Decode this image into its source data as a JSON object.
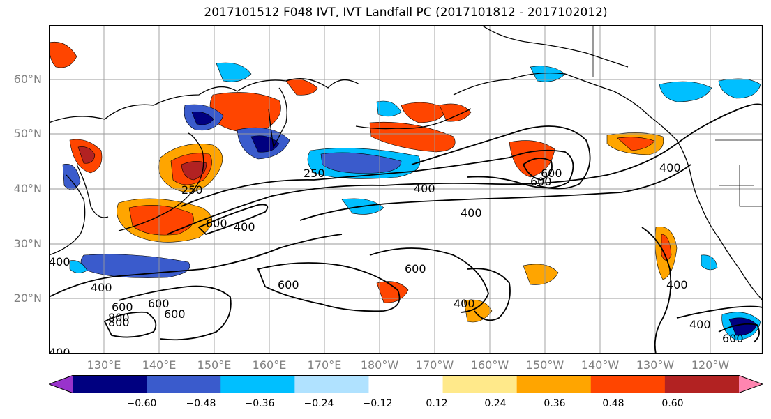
{
  "title": "2017101512 F048 IVT, IVT Landfall PC (2017101812 - 2017102012)",
  "lat_labels": [
    "60°N",
    "50°N",
    "40°N",
    "30°N",
    "20°N"
  ],
  "lon_labels": [
    "130°E",
    "140°E",
    "150°E",
    "160°E",
    "170°E",
    "180°W",
    "170°W",
    "160°W",
    "150°W",
    "140°W",
    "130°W",
    "120°W"
  ],
  "contour_labels": [
    "250",
    "250",
    "400",
    "400",
    "600",
    "400",
    "600",
    "600",
    "600",
    "400",
    "400",
    "400",
    "400",
    "800",
    "600",
    "400",
    "400",
    "600",
    "600",
    "600",
    "400",
    "800",
    "600"
  ],
  "colorbar": {
    "colors": [
      "#9933cc",
      "#000080",
      "#3a5bcc",
      "#00bfff",
      "#b0e2ff",
      "#ffffff",
      "#ffe98a",
      "#ffa500",
      "#ff4500",
      "#b22222",
      "#ff85b0"
    ],
    "labels": [
      "−0.60",
      "−0.48",
      "−0.36",
      "−0.24",
      "−0.12",
      "0.12",
      "0.24",
      "0.36",
      "0.48",
      "0.60"
    ]
  }
}
